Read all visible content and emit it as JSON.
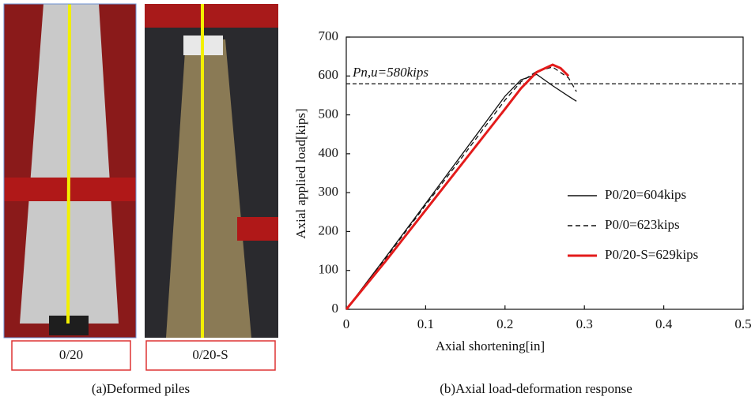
{
  "photos": {
    "labels": [
      "0/20",
      "0/20-S"
    ],
    "caption": "(a)Deformed piles"
  },
  "chart_data": {
    "type": "line",
    "caption": "(b)Axial load-deformation response",
    "xlabel": "Axial shortening[in]",
    "ylabel": "Axial applied load[kips]",
    "xlim": [
      0,
      0.5
    ],
    "xticks": [
      0,
      0.1,
      0.2,
      0.3,
      0.4,
      0.5
    ],
    "ylim": [
      0,
      700
    ],
    "yticks": [
      0,
      100,
      200,
      300,
      400,
      500,
      600,
      700
    ],
    "reference_line": {
      "value": 580,
      "label": "Pn,u=580kips"
    },
    "series": [
      {
        "name": "P0/20=604kips",
        "color": "#111111",
        "dash": "solid",
        "x": [
          0,
          0.05,
          0.1,
          0.15,
          0.2,
          0.22,
          0.24,
          0.26,
          0.28,
          0.29
        ],
        "values": [
          0,
          135,
          272,
          410,
          548,
          590,
          604,
          575,
          548,
          535
        ]
      },
      {
        "name": "P0/0=623kips",
        "color": "#111111",
        "dash": "dashed",
        "x": [
          0,
          0.05,
          0.1,
          0.15,
          0.2,
          0.22,
          0.24,
          0.26,
          0.28,
          0.29
        ],
        "values": [
          0,
          132,
          268,
          402,
          538,
          585,
          612,
          623,
          595,
          560
        ]
      },
      {
        "name": "P0/20-S=629kips",
        "color": "#e31b1b",
        "dash": "solid",
        "x": [
          0,
          0.05,
          0.1,
          0.15,
          0.2,
          0.22,
          0.24,
          0.26,
          0.27,
          0.28
        ],
        "values": [
          0,
          125,
          255,
          385,
          515,
          568,
          610,
          629,
          620,
          600
        ]
      }
    ],
    "legend": "right"
  }
}
